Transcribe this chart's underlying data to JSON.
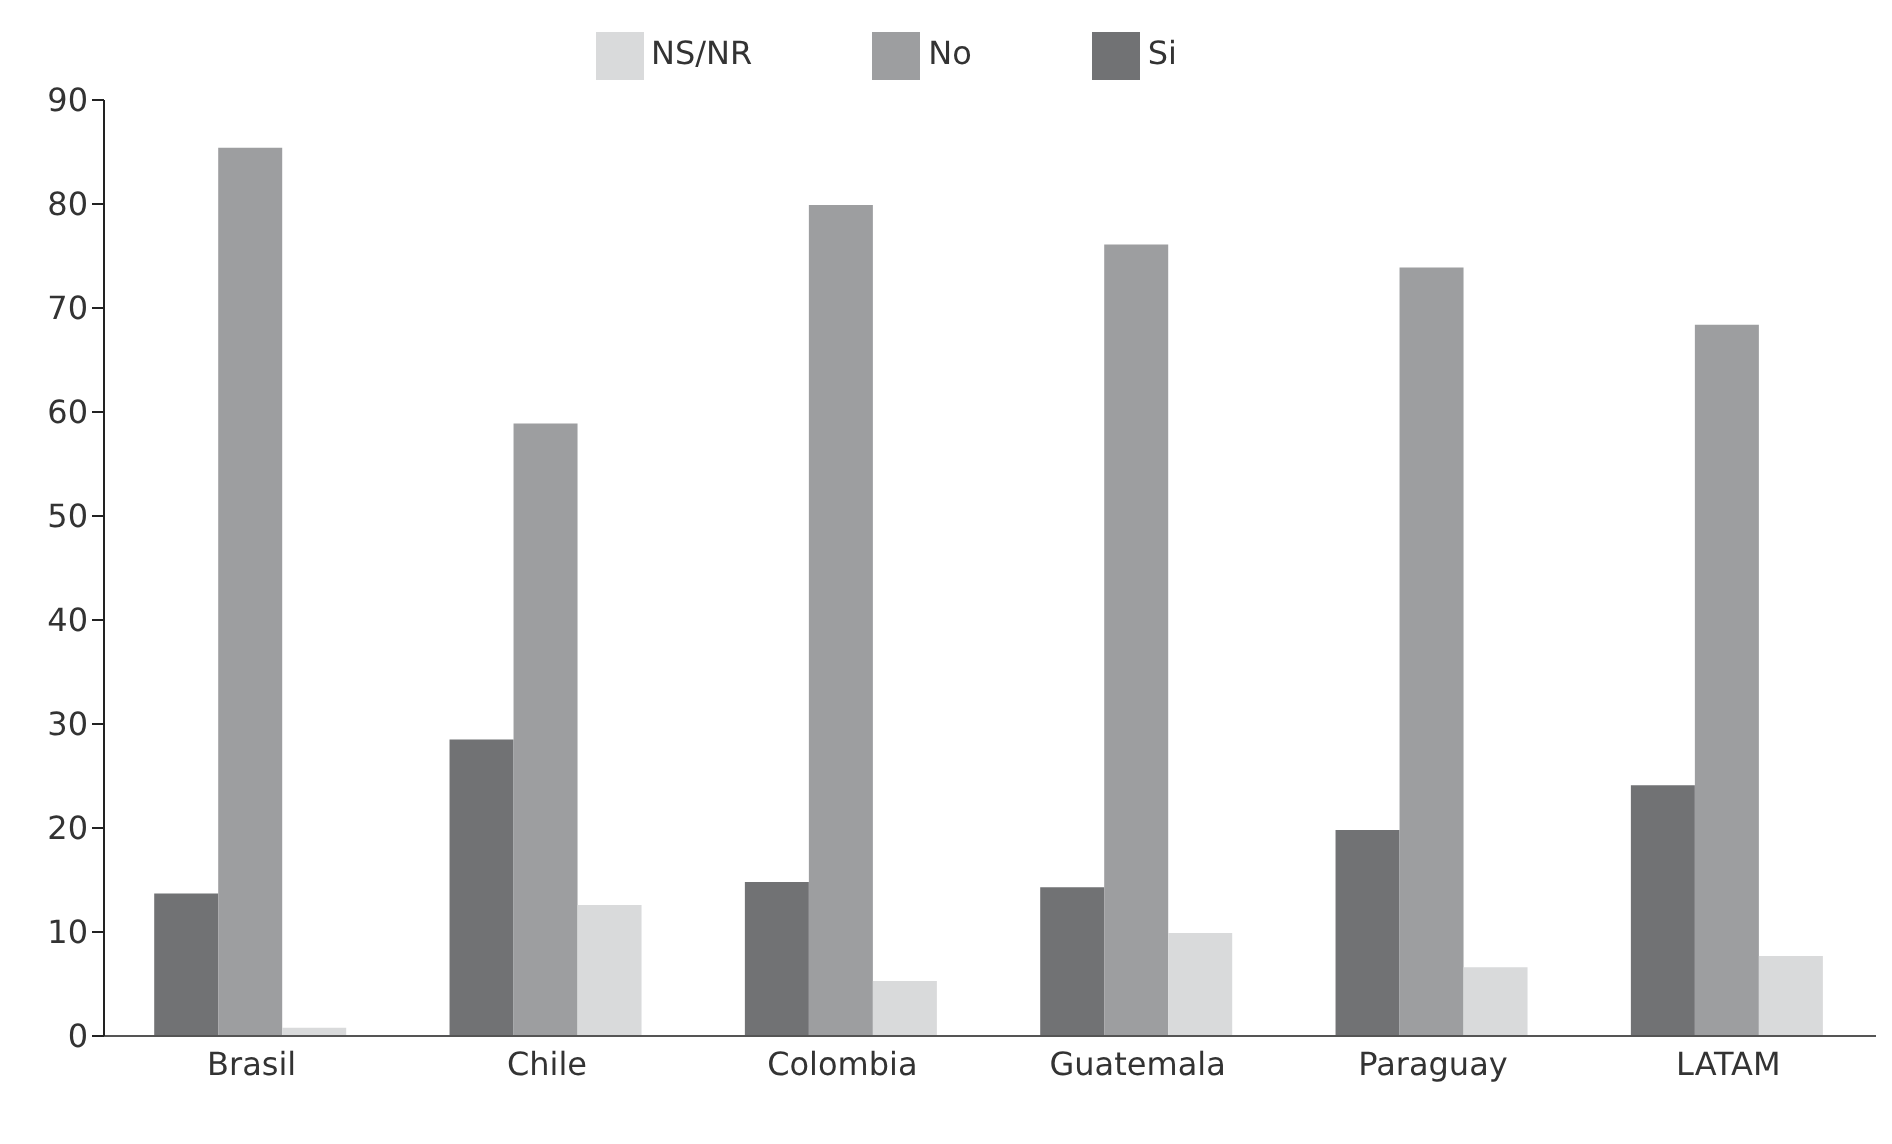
{
  "chart_data": {
    "type": "bar",
    "categories": [
      "Brasil",
      "Chile",
      "Colombia",
      "Guatemala",
      "Paraguay",
      "LATAM"
    ],
    "series": [
      {
        "name": "Si",
        "color": "#717274",
        "values": [
          13.7,
          28.5,
          14.8,
          14.3,
          19.8,
          24.1
        ]
      },
      {
        "name": "No",
        "color": "#9d9ea0",
        "values": [
          85.4,
          58.9,
          79.9,
          76.1,
          73.9,
          68.4
        ]
      },
      {
        "name": "NS/NR",
        "color": "#d9dadb",
        "values": [
          0.8,
          12.6,
          5.3,
          9.9,
          6.6,
          7.7
        ]
      }
    ],
    "ylim": [
      0,
      90
    ],
    "yticks": [
      0,
      10,
      20,
      30,
      40,
      50,
      60,
      70,
      80,
      90
    ],
    "grid": false,
    "legend": "top"
  }
}
